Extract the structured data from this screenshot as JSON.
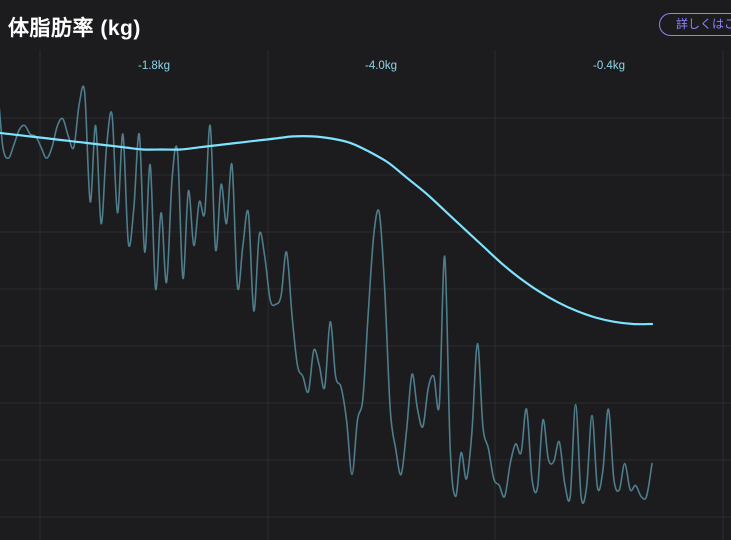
{
  "header": {
    "title": "体脂肪率 (kg)",
    "detail_button_label": "詳しくはこちら"
  },
  "colors": {
    "background": "#1c1c1e",
    "grid": "#2c2c2f",
    "trend_line": "#7ee3ff",
    "raw_line": "#4e7d8c",
    "period_label": "#8fd3ea",
    "button_accent": "#8a82ff"
  },
  "chart_data": {
    "type": "line",
    "period_changes": [
      "-1.8kg",
      "-4.0kg",
      "-0.4kg"
    ],
    "series": [
      {
        "key": "trend",
        "values": [
          8.7,
          8.6,
          8.5,
          8.4,
          8.3,
          8.2,
          8.1,
          8.0,
          7.9,
          7.9,
          7.9,
          8.0,
          8.1,
          8.2,
          8.3,
          8.4,
          8.5,
          8.5,
          8.4,
          8.2,
          7.8,
          7.3,
          6.6,
          5.9,
          5.1,
          4.3,
          3.5,
          2.7,
          2.0,
          1.4,
          0.9,
          0.5,
          0.2,
          0.0,
          -0.1,
          -0.1
        ]
      },
      {
        "key": "raw",
        "values": [
          10.0,
          10.5,
          8.0,
          7.5,
          8.1,
          8.8,
          9.0,
          8.6,
          8.5,
          8.0,
          7.5,
          8.0,
          9.0,
          9.3,
          8.5,
          8.0,
          10.0,
          10.5,
          5.5,
          9.0,
          4.5,
          8.0,
          9.5,
          5.0,
          8.6,
          3.6,
          5.2,
          8.6,
          3.2,
          7.2,
          1.5,
          5.0,
          1.8,
          6.5,
          7.8,
          2.0,
          6.0,
          3.5,
          5.5,
          5.0,
          9.0,
          3.3,
          6.3,
          4.5,
          7.2,
          1.6,
          3.5,
          5.0,
          0.5,
          4.0,
          3.0,
          1.0,
          0.8,
          1.2,
          3.2,
          0.3,
          -2.0,
          -2.5,
          -3.2,
          -1.3,
          -2.0,
          -3.0,
          0.0,
          -2.5,
          -3.0,
          -4.5,
          -7.0,
          -4.5,
          -3.5,
          0.5,
          4.0,
          5.0,
          1.5,
          -4.0,
          -5.8,
          -7.0,
          -5.0,
          -2.4,
          -4.0,
          -4.8,
          -3.0,
          -2.5,
          -3.8,
          3.0,
          -5.8,
          -8.0,
          -6.0,
          -7.2,
          -5.0,
          -1.0,
          -4.8,
          -5.8,
          -7.2,
          -7.5,
          -8.0,
          -6.5,
          -5.6,
          -6.0,
          -4.0,
          -7.2,
          -7.6,
          -4.5,
          -6.3,
          -6.4,
          -5.5,
          -7.4,
          -8.0,
          -3.8,
          -8.0,
          -7.6,
          -4.3,
          -7.6,
          -6.8,
          -4.0,
          -7.2,
          -7.7,
          -6.5,
          -7.7,
          -7.5,
          -8.0,
          -8.0,
          -6.5
        ]
      }
    ],
    "ylim": [
      -10,
      12
    ],
    "grid": true
  }
}
